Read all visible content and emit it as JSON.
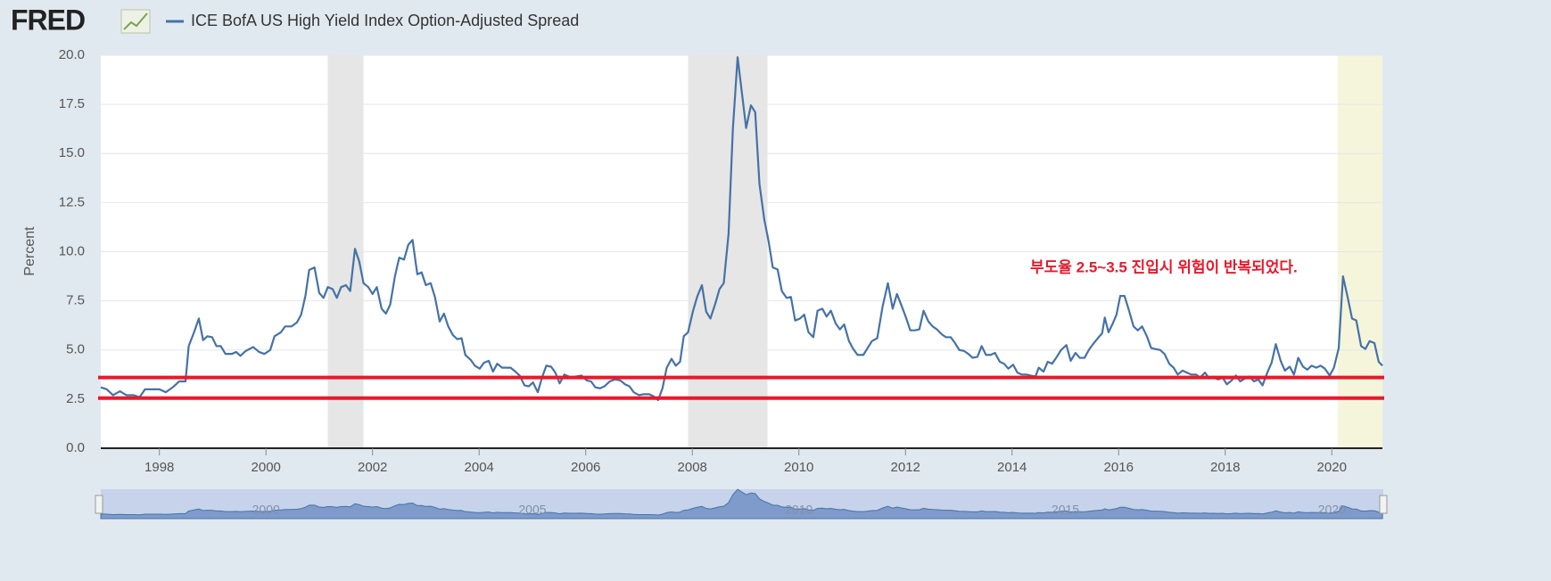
{
  "logo": "FRED",
  "chart_data": {
    "type": "line",
    "legend_label": "ICE BofA US High Yield Index Option-Adjusted Spread",
    "ylabel": "Percent",
    "annotation": "부도율 2.5~3.5 진입시 위험이 반복되었다.",
    "annotation_color": "#e8192c",
    "reference_lines": [
      3.6,
      2.55
    ],
    "reference_color": "#e8192c",
    "recessions": [
      [
        2001.16,
        2001.83
      ],
      [
        2007.92,
        2009.41
      ]
    ],
    "recession_color": "#e6e6e6",
    "highlight": [
      2020.11,
      2020.95
    ],
    "highlight_color": "#f5f5dc",
    "xlim": [
      1996.9,
      2020.95
    ],
    "xticks": [
      1998,
      2000,
      2002,
      2004,
      2006,
      2008,
      2010,
      2012,
      2014,
      2016,
      2018,
      2020
    ],
    "ylim": [
      0,
      20
    ],
    "yticks": [
      {
        "value": 0,
        "label": "0.0"
      },
      2.5,
      {
        "value": 5,
        "label": "5.0"
      },
      7.5,
      {
        "value": 10,
        "label": "10.0"
      },
      12.5,
      {
        "value": 15,
        "label": "15.0"
      },
      17.5,
      {
        "value": 20,
        "label": "20.0"
      }
    ],
    "grid": true,
    "navigator_ticks": [
      2000,
      2005,
      2010,
      2015,
      2020
    ],
    "series": [
      {
        "name": "ICE BofA US High Yield Index Option-Adjusted Spread",
        "color": "#4572a7",
        "x": [
          1996.9,
          1997.01,
          1997.13,
          1997.26,
          1997.38,
          1997.51,
          1997.63,
          1997.73,
          1997.88,
          1998.0,
          1998.12,
          1998.25,
          1998.37,
          1998.49,
          1998.55,
          1998.65,
          1998.74,
          1998.82,
          1998.9,
          1998.99,
          1999.07,
          1999.15,
          1999.24,
          1999.36,
          1999.44,
          1999.52,
          1999.62,
          1999.76,
          1999.87,
          1999.97,
          2000.08,
          2000.16,
          2000.28,
          2000.36,
          2000.48,
          2000.58,
          2000.66,
          2000.74,
          2000.81,
          2000.91,
          2001.0,
          2001.08,
          2001.16,
          2001.25,
          2001.33,
          2001.41,
          2001.5,
          2001.58,
          2001.67,
          2001.75,
          2001.83,
          2001.92,
          2002.0,
          2002.08,
          2002.17,
          2002.25,
          2002.33,
          2002.42,
          2002.5,
          2002.59,
          2002.67,
          2002.75,
          2002.84,
          2002.92,
          2003.0,
          2003.09,
          2003.17,
          2003.26,
          2003.34,
          2003.42,
          2003.51,
          2003.59,
          2003.67,
          2003.74,
          2003.84,
          2003.92,
          2004.01,
          2004.09,
          2004.18,
          2004.26,
          2004.34,
          2004.43,
          2004.51,
          2004.59,
          2004.68,
          2004.76,
          2004.85,
          2004.93,
          2005.01,
          2005.1,
          2005.18,
          2005.26,
          2005.35,
          2005.43,
          2005.51,
          2005.6,
          2005.72,
          2005.82,
          2005.92,
          2006.02,
          2006.1,
          2006.18,
          2006.27,
          2006.35,
          2006.45,
          2006.55,
          2006.65,
          2006.74,
          2006.82,
          2006.9,
          2007.0,
          2007.09,
          2007.19,
          2007.27,
          2007.36,
          2007.44,
          2007.52,
          2007.61,
          2007.69,
          2007.77,
          2007.84,
          2007.92,
          2008.01,
          2008.09,
          2008.18,
          2008.26,
          2008.34,
          2008.43,
          2008.51,
          2008.59,
          2008.68,
          2008.76,
          2008.85,
          2008.93,
          2009.01,
          2009.1,
          2009.18,
          2009.26,
          2009.35,
          2009.43,
          2009.51,
          2009.6,
          2009.68,
          2009.77,
          2009.85,
          2009.93,
          2010.02,
          2010.1,
          2010.18,
          2010.27,
          2010.35,
          2010.44,
          2010.52,
          2010.6,
          2010.69,
          2010.77,
          2010.85,
          2010.94,
          2011.02,
          2011.1,
          2011.21,
          2011.29,
          2011.37,
          2011.47,
          2011.57,
          2011.67,
          2011.76,
          2011.84,
          2011.92,
          2012.01,
          2012.09,
          2012.18,
          2012.26,
          2012.34,
          2012.43,
          2012.51,
          2012.59,
          2012.68,
          2012.76,
          2012.85,
          2012.93,
          2013.01,
          2013.1,
          2013.18,
          2013.26,
          2013.35,
          2013.43,
          2013.51,
          2013.6,
          2013.68,
          2013.77,
          2013.85,
          2013.93,
          2014.02,
          2014.1,
          2014.18,
          2014.27,
          2014.35,
          2014.44,
          2014.5,
          2014.59,
          2014.67,
          2014.75,
          2014.84,
          2014.92,
          2015.02,
          2015.1,
          2015.19,
          2015.27,
          2015.36,
          2015.44,
          2015.52,
          2015.61,
          2015.69,
          2015.74,
          2015.81,
          2015.89,
          2015.96,
          2016.03,
          2016.11,
          2016.19,
          2016.28,
          2016.36,
          2016.44,
          2016.53,
          2016.61,
          2016.69,
          2016.78,
          2016.86,
          2016.95,
          2017.03,
          2017.11,
          2017.2,
          2017.28,
          2017.36,
          2017.45,
          2017.53,
          2017.62,
          2017.7,
          2017.78,
          2017.87,
          2017.95,
          2018.03,
          2018.12,
          2018.2,
          2018.28,
          2018.37,
          2018.45,
          2018.54,
          2018.62,
          2018.7,
          2018.79,
          2018.87,
          2018.95,
          2019.04,
          2019.12,
          2019.21,
          2019.29,
          2019.37,
          2019.46,
          2019.54,
          2019.62,
          2019.71,
          2019.79,
          2019.87,
          2019.96,
          2020.04,
          2020.13,
          2020.21,
          2020.3,
          2020.38,
          2020.46,
          2020.55,
          2020.63,
          2020.71,
          2020.8,
          2020.88,
          2020.95
        ],
        "values": [
          3.1,
          3.0,
          2.7,
          2.9,
          2.7,
          2.7,
          2.6,
          3.0,
          3.0,
          3.0,
          2.85,
          3.1,
          3.4,
          3.4,
          5.2,
          5.9,
          6.6,
          5.5,
          5.7,
          5.65,
          5.2,
          5.2,
          4.8,
          4.8,
          4.9,
          4.7,
          4.95,
          5.15,
          4.9,
          4.8,
          5.0,
          5.7,
          5.9,
          6.2,
          6.2,
          6.4,
          6.8,
          7.75,
          9.07,
          9.2,
          7.9,
          7.65,
          8.2,
          8.1,
          7.65,
          8.2,
          8.3,
          8.0,
          10.15,
          9.5,
          8.4,
          8.2,
          7.85,
          8.2,
          7.1,
          6.85,
          7.3,
          8.75,
          9.7,
          9.6,
          10.35,
          10.6,
          8.85,
          8.95,
          8.3,
          8.4,
          7.7,
          6.45,
          6.85,
          6.2,
          5.75,
          5.55,
          5.6,
          4.75,
          4.5,
          4.2,
          4.05,
          4.35,
          4.45,
          3.9,
          4.3,
          4.1,
          4.1,
          4.1,
          3.9,
          3.7,
          3.2,
          3.15,
          3.35,
          2.85,
          3.6,
          4.2,
          4.15,
          3.85,
          3.3,
          3.75,
          3.6,
          3.65,
          3.7,
          3.45,
          3.4,
          3.1,
          3.05,
          3.15,
          3.4,
          3.5,
          3.45,
          3.25,
          3.15,
          2.85,
          2.7,
          2.75,
          2.75,
          2.65,
          2.45,
          3.05,
          4.1,
          4.55,
          4.2,
          4.4,
          5.7,
          5.9,
          6.95,
          7.7,
          8.3,
          6.95,
          6.6,
          7.35,
          8.1,
          8.4,
          10.9,
          16.2,
          19.9,
          18.1,
          16.3,
          17.45,
          17.1,
          13.45,
          11.65,
          10.55,
          9.2,
          9.1,
          8.0,
          7.65,
          7.7,
          6.5,
          6.6,
          6.8,
          5.9,
          5.65,
          7.0,
          7.1,
          6.7,
          7.0,
          6.35,
          6.05,
          6.3,
          5.45,
          5.05,
          4.75,
          4.75,
          5.1,
          5.45,
          5.6,
          7.2,
          8.4,
          7.1,
          7.85,
          7.3,
          6.65,
          6.0,
          6.0,
          6.05,
          7.0,
          6.45,
          6.2,
          6.05,
          5.8,
          5.65,
          5.65,
          5.35,
          5.0,
          4.95,
          4.8,
          4.6,
          4.65,
          5.2,
          4.75,
          4.75,
          4.85,
          4.4,
          4.3,
          4.05,
          4.25,
          3.85,
          3.75,
          3.75,
          3.7,
          3.65,
          4.1,
          3.9,
          4.4,
          4.3,
          4.65,
          5.0,
          5.25,
          4.45,
          4.85,
          4.6,
          4.6,
          5.0,
          5.3,
          5.6,
          5.85,
          6.65,
          5.9,
          6.35,
          6.8,
          7.75,
          7.75,
          7.05,
          6.2,
          6.0,
          6.2,
          5.7,
          5.1,
          5.05,
          5.0,
          4.8,
          4.3,
          4.1,
          3.75,
          3.95,
          3.85,
          3.75,
          3.75,
          3.6,
          3.85,
          3.55,
          3.6,
          3.5,
          3.6,
          3.25,
          3.45,
          3.7,
          3.4,
          3.55,
          3.65,
          3.4,
          3.5,
          3.2,
          3.85,
          4.35,
          5.3,
          4.45,
          3.95,
          4.15,
          3.75,
          4.6,
          4.15,
          4.0,
          4.2,
          4.1,
          4.2,
          4.05,
          3.7,
          4.1,
          5.1,
          8.75,
          7.65,
          6.6,
          6.5,
          5.2,
          5.05,
          5.45,
          5.35,
          4.4,
          4.2
        ]
      }
    ]
  }
}
